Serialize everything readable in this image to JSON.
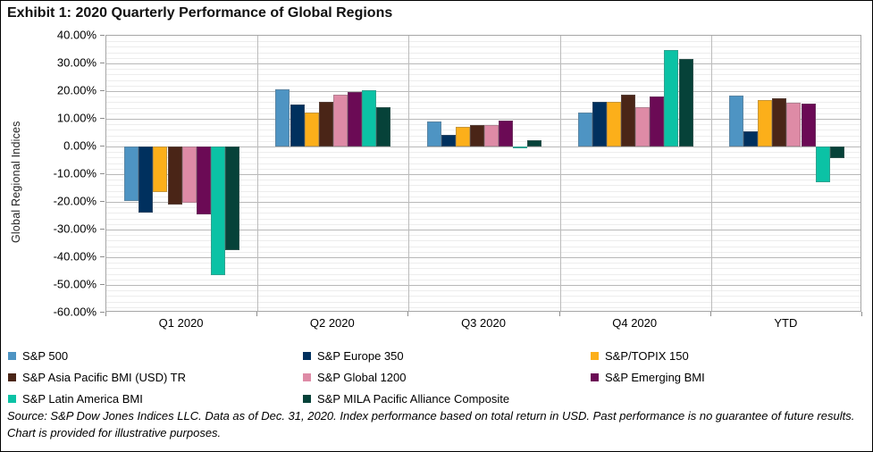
{
  "title": "Exhibit 1: 2020 Quarterly Performance of Global Regions",
  "source_note": "Source: S&P Dow Jones Indices LLC. Data as of Dec. 31, 2020. Index performance based on total return in USD. Past performance is no guarantee of future results. Chart is provided for illustrative purposes.",
  "chart_data": {
    "type": "bar",
    "title": "Exhibit 1: 2020 Quarterly Performance of Global Regions",
    "xlabel": "",
    "ylabel": "Global Regional Indices",
    "ylim": [
      -60,
      40
    ],
    "ytick_step": 10,
    "ytick_labels": [
      "40.00%",
      "30.00%",
      "20.00%",
      "10.00%",
      "0.00%",
      "-10.00%",
      "-20.00%",
      "-30.00%",
      "-40.00%",
      "-50.00%",
      "-60.00%"
    ],
    "grid": {
      "major": true,
      "minor": true,
      "minor_step": 2
    },
    "legend_position": "bottom",
    "categories": [
      "Q1 2020",
      "Q2 2020",
      "Q3 2020",
      "Q4 2020",
      "YTD"
    ],
    "series": [
      {
        "name": "S&P 500",
        "color": "#4e94c3",
        "values": [
          -19.6,
          20.5,
          8.9,
          12.1,
          18.4
        ]
      },
      {
        "name": "S&P Europe 350",
        "color": "#00305e",
        "values": [
          -23.8,
          15.1,
          4.1,
          16.2,
          5.6
        ]
      },
      {
        "name": "S&P/TOPIX 150",
        "color": "#fcaf1a",
        "values": [
          -16.6,
          12.2,
          7.2,
          16.1,
          16.8
        ]
      },
      {
        "name": "S&P Asia Pacific BMI (USD) TR",
        "color": "#4a2517",
        "values": [
          -21.0,
          16.2,
          7.8,
          18.8,
          17.3
        ]
      },
      {
        "name": "S&P Global 1200",
        "color": "#de8ba6",
        "values": [
          -20.2,
          18.8,
          7.7,
          14.1,
          15.8
        ]
      },
      {
        "name": "S&P Emerging BMI",
        "color": "#6b0a55",
        "values": [
          -24.6,
          19.7,
          9.4,
          18.2,
          15.6
        ]
      },
      {
        "name": "S&P Latin America BMI",
        "color": "#0bc2a5",
        "values": [
          -46.5,
          20.3,
          -0.6,
          34.7,
          -12.9
        ]
      },
      {
        "name": "S&P MILA Pacific Alliance Composite",
        "color": "#064239",
        "values": [
          -37.5,
          14.1,
          2.2,
          31.5,
          -4.1
        ]
      }
    ]
  }
}
